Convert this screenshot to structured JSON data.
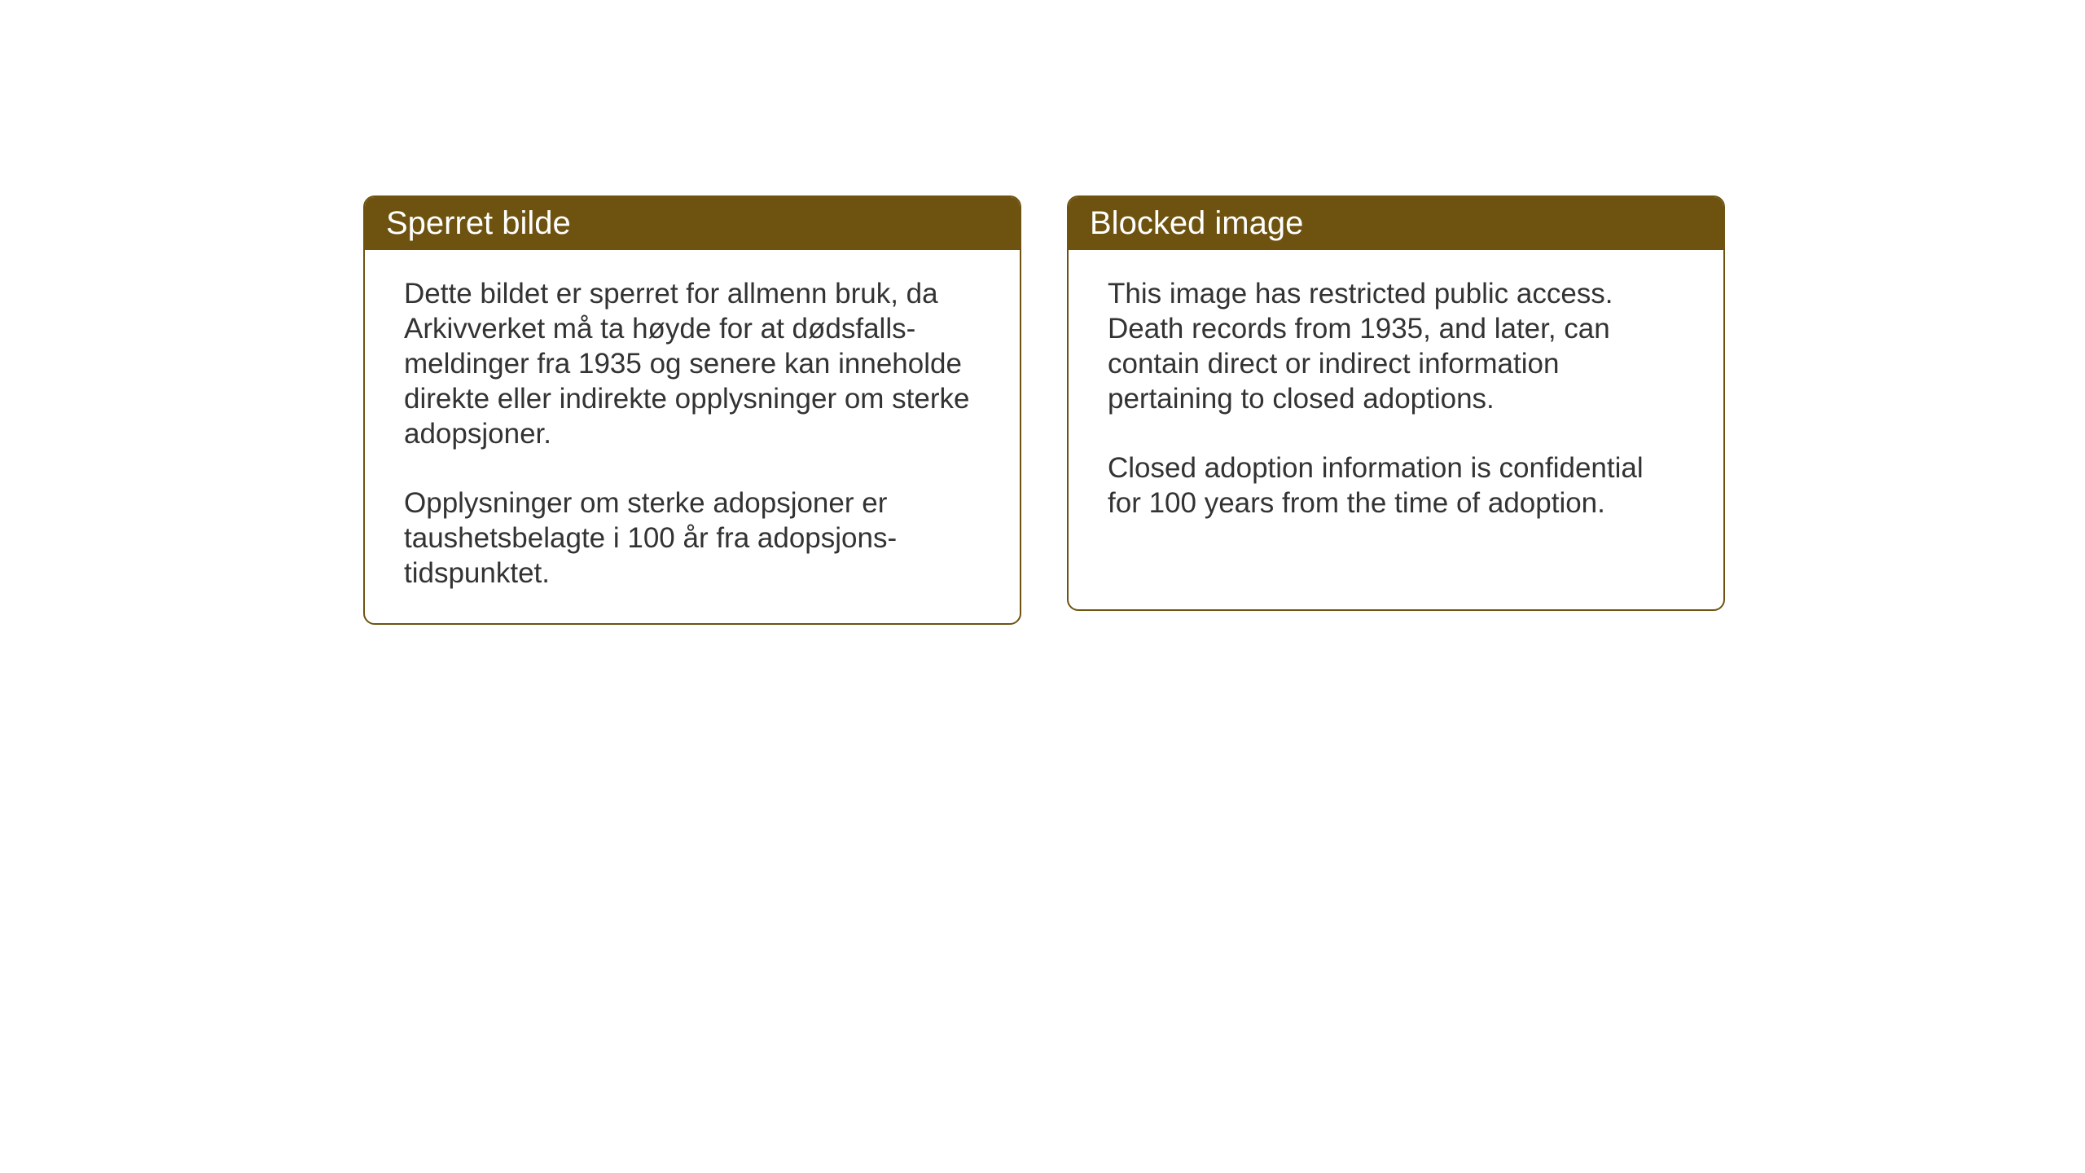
{
  "cards": {
    "left": {
      "header": "Sperret bilde",
      "paragraph1": "Dette bildet er sperret for allmenn bruk, da Arkivverket må ta høyde for at dødsfalls-meldinger fra 1935 og senere kan inneholde direkte eller indirekte opplysninger om sterke adopsjoner.",
      "paragraph2": "Opplysninger om sterke adopsjoner er taushetsbelagte i 100 år fra adopsjons-tidspunktet."
    },
    "right": {
      "header": "Blocked image",
      "paragraph1": "This image has restricted public access. Death records from 1935, and later, can contain direct or indirect information pertaining to closed adoptions.",
      "paragraph2": "Closed adoption information is confidential for 100 years from the time of adoption."
    }
  },
  "styling": {
    "header_bg_color": "#6e5310",
    "header_text_color": "#ffffff",
    "border_color": "#6e5310",
    "body_text_color": "#333333",
    "background_color": "#ffffff",
    "header_fontsize": 40,
    "body_fontsize": 35,
    "border_radius": 14,
    "border_width": 2
  }
}
